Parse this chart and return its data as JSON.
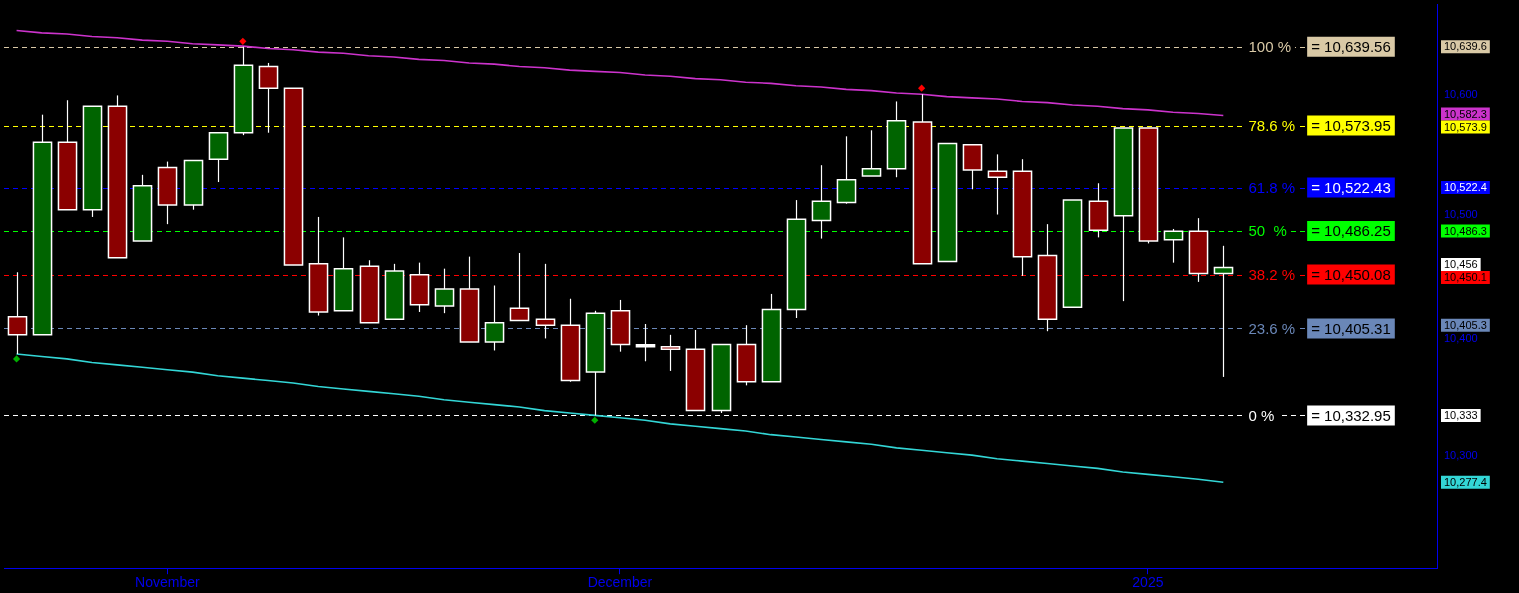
{
  "chart_data": {
    "type": "candlestick",
    "categories": [
      null,
      null,
      null,
      null,
      null,
      null,
      "November",
      null,
      null,
      null,
      null,
      null,
      null,
      null,
      null,
      null,
      null,
      null,
      null,
      null,
      null,
      null,
      null,
      null,
      "December",
      null,
      null,
      null,
      null,
      null,
      null,
      null,
      null,
      null,
      null,
      null,
      null,
      null,
      null,
      null,
      null,
      null,
      null,
      null,
      null,
      "2025",
      null,
      null,
      null
    ],
    "ohlc": [
      [
        10415,
        10452,
        10384,
        10400
      ],
      [
        10400,
        10583,
        10400,
        10560
      ],
      [
        10560,
        10595,
        10504,
        10504
      ],
      [
        10504,
        10590,
        10498,
        10590
      ],
      [
        10590,
        10599,
        10464,
        10464
      ],
      [
        10478,
        10533,
        10478,
        10524
      ],
      [
        10539,
        10544,
        10492,
        10508
      ],
      [
        10508,
        10545,
        10504,
        10545
      ],
      [
        10546,
        10568,
        10527,
        10568
      ],
      [
        10568,
        10639.56,
        10566,
        10624
      ],
      [
        10623,
        10626,
        10568,
        10605
      ],
      [
        10605,
        10605,
        10458,
        10458
      ],
      [
        10459,
        10498,
        10416,
        10419
      ],
      [
        10420,
        10481,
        10420,
        10455
      ],
      [
        10457,
        10462,
        10410,
        10410
      ],
      [
        10413,
        10459,
        10413,
        10453
      ],
      [
        10450,
        10460,
        10419,
        10425
      ],
      [
        10424,
        10455,
        10418,
        10438
      ],
      [
        10438,
        10465,
        10394,
        10394
      ],
      [
        10394,
        10441,
        10387,
        10410
      ],
      [
        10422,
        10468,
        10412,
        10412
      ],
      [
        10413,
        10459,
        10397,
        10408
      ],
      [
        10408,
        10430,
        10361,
        10362
      ],
      [
        10369,
        10420,
        10332.95,
        10418
      ],
      [
        10420,
        10429,
        10386,
        10392
      ],
      [
        10391,
        10409,
        10378,
        10391
      ],
      [
        10390,
        10400,
        10370,
        10388
      ],
      [
        10388,
        10404,
        10337,
        10337
      ],
      [
        10337,
        10392,
        10335,
        10392
      ],
      [
        10392,
        10408,
        10358,
        10361
      ],
      [
        10361,
        10434,
        10361,
        10421
      ],
      [
        10421,
        10512,
        10414,
        10496
      ],
      [
        10495,
        10541,
        10480,
        10511
      ],
      [
        10510,
        10565,
        10509,
        10529
      ],
      [
        10532,
        10570,
        10532,
        10538
      ],
      [
        10538,
        10594,
        10531,
        10578
      ],
      [
        10577,
        10600,
        10459,
        10459
      ],
      [
        10461,
        10559,
        10461,
        10559
      ],
      [
        10558,
        10558,
        10521,
        10537
      ],
      [
        10536,
        10550,
        10500,
        10531
      ],
      [
        10536,
        10546,
        10449,
        10465
      ],
      [
        10466,
        10492,
        10403,
        10413
      ],
      [
        10423,
        10512,
        10423,
        10512
      ],
      [
        10511,
        10526,
        10481,
        10487
      ],
      [
        10499,
        10572,
        10428,
        10572
      ],
      [
        10572,
        10572,
        10476,
        10478
      ],
      [
        10479,
        10488,
        10460,
        10486
      ],
      [
        10486,
        10497,
        10444,
        10451
      ],
      [
        10451,
        10474,
        10365,
        10456
      ]
    ],
    "colors": [
      "#8b0000",
      "#006400",
      "#8b0000",
      "#006400",
      "#8b0000",
      "#006400",
      "#8b0000",
      "#006400",
      "#006400",
      "#006400",
      "#8b0000",
      "#8b0000",
      "#8b0000",
      "#006400",
      "#8b0000",
      "#006400",
      "#8b0000",
      "#006400",
      "#8b0000",
      "#006400",
      "#8b0000",
      "#8b0000",
      "#8b0000",
      "#006400",
      "#8b0000",
      "#ffffff",
      "#8b0000",
      "#8b0000",
      "#006400",
      "#8b0000",
      "#006400",
      "#006400",
      "#006400",
      "#006400",
      "#006400",
      "#006400",
      "#8b0000",
      "#006400",
      "#8b0000",
      "#8b0000",
      "#8b0000",
      "#8b0000",
      "#006400",
      "#8b0000",
      "#006400",
      "#8b0000",
      "#006400",
      "#8b0000",
      "#006400"
    ],
    "series": [
      {
        "type": "line",
        "color": "#cc33cc",
        "values": [
          10653,
          10651,
          10650,
          10648,
          10647,
          10645,
          10644,
          10642,
          10641,
          10640,
          10638,
          10637,
          10635,
          10634,
          10632,
          10631,
          10629,
          10628,
          10626,
          10625,
          10623,
          10622,
          10620,
          10619,
          10618,
          10616,
          10615,
          10613,
          10612,
          10610,
          10609,
          10607,
          10606,
          10604,
          10603,
          10601,
          10600,
          10598,
          10597,
          10596,
          10594,
          10593,
          10591,
          10590,
          10588,
          10587,
          10585,
          10584,
          10582.3
        ]
      },
      {
        "type": "line",
        "color": "#33d6d6",
        "values": [
          10384,
          10382,
          10380,
          10377,
          10375,
          10373,
          10371,
          10369,
          10366,
          10364,
          10362,
          10360,
          10357,
          10355,
          10353,
          10351,
          10349,
          10346,
          10344,
          10342,
          10340,
          10337,
          10335,
          10333,
          10331,
          10329,
          10326,
          10324,
          10322,
          10320,
          10317,
          10315,
          10313,
          10311,
          10309,
          10306,
          10304,
          10302,
          10300,
          10297,
          10295,
          10293,
          10291,
          10289,
          10286,
          10284,
          10282,
          10280,
          10277.4
        ]
      },
      {
        "type": "scatter",
        "color": "#ff0000",
        "marker": "diamond",
        "values": [
          null,
          null,
          null,
          null,
          null,
          null,
          null,
          null,
          null,
          10644,
          null,
          null,
          null,
          null,
          null,
          null,
          null,
          null,
          null,
          null,
          null,
          null,
          null,
          null,
          null,
          null,
          null,
          null,
          null,
          null,
          null,
          null,
          null,
          null,
          null,
          null,
          10605,
          null,
          null,
          null,
          null,
          null,
          null,
          null,
          null,
          null,
          null,
          null,
          null
        ]
      },
      {
        "type": "scatter",
        "color": "#00b000",
        "marker": "diamond",
        "values": [
          10380,
          null,
          null,
          null,
          null,
          null,
          null,
          null,
          null,
          null,
          null,
          null,
          null,
          null,
          null,
          null,
          null,
          null,
          null,
          null,
          null,
          null,
          null,
          10329,
          null,
          null,
          null,
          null,
          null,
          null,
          null,
          null,
          null,
          null,
          null,
          null,
          null,
          null,
          null,
          null,
          null,
          null,
          null,
          null,
          null,
          null,
          null,
          null,
          null
        ]
      }
    ],
    "ylim": [
      10206,
      10675
    ],
    "yticks": [
      {
        "value": 10277.4,
        "label": "10,277.4"
      },
      {
        "value": 10300,
        "label": "10,300"
      },
      {
        "value": 10332.95,
        "label": "10,333"
      },
      {
        "value": 10400,
        "label": "10,400"
      },
      {
        "value": 10405.31,
        "label": "10,405.3"
      },
      {
        "value": 10450.08,
        "label": "10,450.1"
      },
      {
        "value": 10456,
        "label": "10,456"
      },
      {
        "value": 10486.25,
        "label": "10,486.3"
      },
      {
        "value": 10500,
        "label": "10,500"
      },
      {
        "value": 10522.43,
        "label": "10,522.4"
      },
      {
        "value": 10573.95,
        "label": "10,573.9"
      },
      {
        "value": 10582.3,
        "label": "10,582.3"
      },
      {
        "value": 10600,
        "label": "10,600"
      },
      {
        "value": 10639.56,
        "label": "10,639.6"
      }
    ],
    "ref_lines": [
      {
        "axis": "y",
        "value": 10639.56,
        "label": "= 10,639.56",
        "color": "#d9c9a6",
        "line_style": "dashed"
      },
      {
        "axis": "y",
        "value": 10573.95,
        "label": "= 10,573.95",
        "color": "#ffff00",
        "line_style": "dashed"
      },
      {
        "axis": "y",
        "value": 10522.43,
        "label": "= 10,522.43",
        "color": "#0000ff",
        "line_style": "dashed"
      },
      {
        "axis": "y",
        "value": 10486.25,
        "label": "= 10,486.25",
        "color": "#00ff00",
        "line_style": "dashed"
      },
      {
        "axis": "y",
        "value": 10450.08,
        "label": "= 10,450.08",
        "color": "#ff0000",
        "line_style": "dashed"
      },
      {
        "axis": "y",
        "value": 10405.31,
        "label": "= 10,405.31",
        "color": "#6a87b8",
        "line_style": "dashed"
      },
      {
        "axis": "y",
        "value": 10332.95,
        "label": "= 10,332.95",
        "color": "#ffffff",
        "line_style": "dashed"
      }
    ],
    "annotations": [
      "100 %",
      "78.6 %",
      "61.8 %",
      "50  %",
      "38.2 %",
      "23.6 %",
      "0 %"
    ]
  }
}
